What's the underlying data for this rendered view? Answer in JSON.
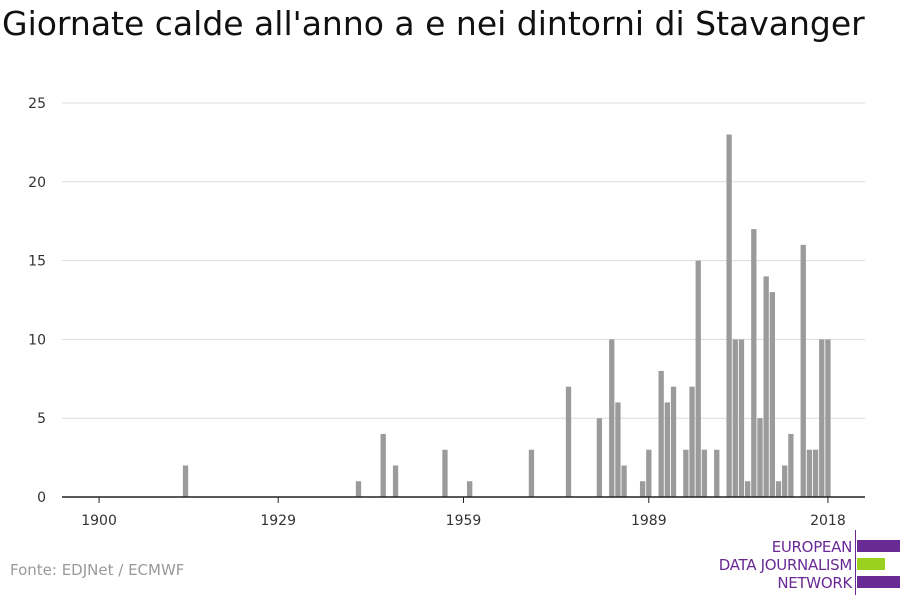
{
  "title": "Giornate calde all'anno a e nei dintorni di Stavanger",
  "source": "Fonte: EDJNet / ECMWF",
  "logo": {
    "line1": "EUROPEAN",
    "line2": "DATA JOURNALISM",
    "line3": "NETWORK",
    "colors": {
      "purple": "#6a2a96",
      "green": "#9ad120"
    }
  },
  "chart_data": {
    "type": "bar",
    "title": "Giornate calde all'anno a e nei dintorni di Stavanger",
    "xlabel": "",
    "ylabel": "",
    "xlim": [
      1894,
      2024
    ],
    "ylim": [
      0,
      25
    ],
    "x_ticks": [
      1900,
      1929,
      1959,
      1989,
      2018
    ],
    "y_ticks": [
      0,
      5,
      10,
      15,
      20,
      25
    ],
    "grid": true,
    "bar_color": "#9b9b9b",
    "x": [
      1914,
      1942,
      1946,
      1948,
      1956,
      1960,
      1970,
      1976,
      1981,
      1983,
      1984,
      1985,
      1988,
      1989,
      1991,
      1992,
      1993,
      1995,
      1996,
      1997,
      1998,
      2000,
      2002,
      2003,
      2004,
      2005,
      2006,
      2007,
      2008,
      2009,
      2010,
      2011,
      2012,
      2014,
      2015,
      2016,
      2017,
      2018
    ],
    "values": [
      2,
      1,
      4,
      2,
      3,
      1,
      3,
      7,
      5,
      10,
      6,
      2,
      1,
      3,
      8,
      6,
      7,
      3,
      7,
      15,
      3,
      3,
      23,
      10,
      10,
      1,
      17,
      5,
      14,
      13,
      1,
      2,
      4,
      16,
      3,
      3,
      10,
      10
    ]
  }
}
